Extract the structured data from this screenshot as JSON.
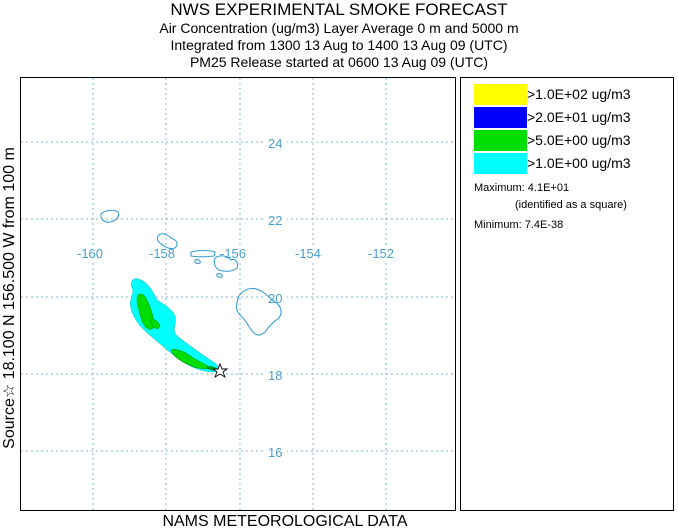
{
  "header": {
    "title": "NWS EXPERIMENTAL SMOKE FORECAST",
    "line2": "Air Concentration (ug/m3) Layer Average    0 m and  5000 m",
    "line3": "Integrated from 1300 13 Aug to 1400 13 Aug 09 (UTC)",
    "line4": "PM25 Release started at 0600 13 Aug 09 (UTC)"
  },
  "side_label": "Source☆ 18.100  N 156.500  W      from   100 m",
  "footer": "NAMS METEOROLOGICAL DATA",
  "map": {
    "lon_labels": [
      "-160",
      "-158",
      "-156",
      "-154",
      "-152"
    ],
    "lat_labels": [
      "24",
      "22",
      "20",
      "18",
      "16"
    ],
    "grid_color": "#4a9fd0",
    "coast_color": "#3a9fd0",
    "source_marker": "star-icon"
  },
  "legend": {
    "items": [
      {
        "label": ">1.0E+02 ug/m3",
        "color": "#ffff00"
      },
      {
        "label": ">2.0E+01 ug/m3",
        "color": "#0000ff"
      },
      {
        "label": ">5.0E+00 ug/m3",
        "color": "#00dd00"
      },
      {
        "label": ">1.0E+00 ug/m3",
        "color": "#00ffff"
      }
    ],
    "maximum_label": "Maximum: 4.1E+01",
    "maximum_note": "(identified as a square)",
    "minimum_label": "Minimum: 7.4E-38"
  }
}
